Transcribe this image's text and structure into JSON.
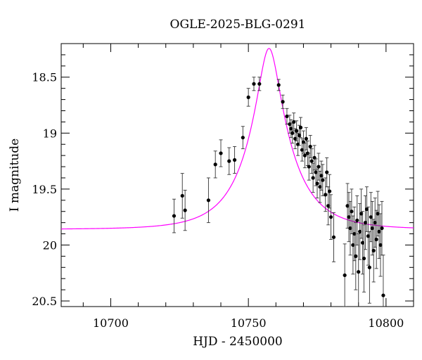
{
  "chart_data": {
    "type": "scatter",
    "title": "OGLE-2025-BLG-0291",
    "xlabel": "HJD - 2450000",
    "ylabel": "I magnitude",
    "xlim": [
      10682,
      10810
    ],
    "ylim": [
      20.55,
      18.2
    ],
    "y_inverted": true,
    "grid": false,
    "x_ticks": [
      10700,
      10750,
      10800
    ],
    "x_tick_labels": [
      "10700",
      "10750",
      "10800"
    ],
    "y_ticks": [
      18.5,
      19,
      19.5,
      20,
      20.5
    ],
    "y_tick_labels": [
      "18.5",
      "19",
      "19.5",
      "20",
      "20.5"
    ],
    "colors": {
      "data": "#000000",
      "model": "#ff00ff",
      "frame": "#000000"
    },
    "series": [
      {
        "kind": "points_with_errorbars",
        "x": [
          10723,
          10726,
          10727,
          10735.5,
          10738,
          10740,
          10743,
          10745,
          10748,
          10750,
          10752,
          10754,
          10761,
          10762.5,
          10764,
          10765,
          10765.5,
          10766,
          10766.5,
          10767,
          10767.5,
          10768,
          10768.5,
          10769,
          10769.5,
          10770,
          10770.5,
          10771,
          10771.5,
          10772,
          10772.5,
          10773,
          10773.5,
          10774,
          10774.5,
          10775,
          10775.5,
          10776,
          10776.5,
          10777,
          10778,
          10778.5,
          10779,
          10779.5,
          10780,
          10781,
          10785,
          10786,
          10786.5,
          10787,
          10787.5,
          10788,
          10788.5,
          10789,
          10789.5,
          10790,
          10790.5,
          10791,
          10791.5,
          10792,
          10792.5,
          10793,
          10793.5,
          10794,
          10794.5,
          10795,
          10795.5,
          10796,
          10796.5,
          10797,
          10797.5,
          10798,
          10798.5,
          10799
        ],
        "y": [
          19.74,
          19.56,
          19.69,
          19.6,
          19.28,
          19.18,
          19.25,
          19.24,
          19.04,
          18.68,
          18.56,
          18.56,
          18.57,
          18.72,
          18.85,
          18.92,
          18.96,
          19.0,
          18.9,
          19.05,
          18.98,
          19.1,
          19.02,
          18.95,
          19.15,
          19.08,
          19.2,
          19.05,
          19.18,
          19.3,
          19.12,
          19.25,
          19.4,
          19.22,
          19.35,
          19.45,
          19.3,
          19.48,
          19.38,
          19.42,
          19.55,
          19.35,
          19.65,
          19.52,
          19.75,
          19.93,
          20.27,
          19.65,
          19.75,
          19.85,
          19.7,
          20.0,
          19.9,
          20.1,
          19.78,
          20.24,
          19.88,
          19.72,
          19.98,
          20.12,
          19.8,
          19.68,
          19.92,
          20.2,
          19.75,
          19.85,
          20.05,
          19.8,
          19.95,
          19.72,
          19.88,
          20.0,
          19.85,
          20.45
        ],
        "yerr": [
          0.15,
          0.2,
          0.18,
          0.2,
          0.12,
          0.12,
          0.12,
          0.12,
          0.1,
          0.08,
          0.06,
          0.06,
          0.05,
          0.06,
          0.07,
          0.08,
          0.08,
          0.09,
          0.08,
          0.09,
          0.09,
          0.1,
          0.09,
          0.09,
          0.1,
          0.1,
          0.11,
          0.1,
          0.11,
          0.12,
          0.1,
          0.11,
          0.13,
          0.11,
          0.12,
          0.13,
          0.12,
          0.14,
          0.13,
          0.14,
          0.15,
          0.13,
          0.17,
          0.15,
          0.2,
          0.22,
          0.28,
          0.2,
          0.22,
          0.24,
          0.2,
          0.26,
          0.24,
          0.3,
          0.22,
          0.34,
          0.25,
          0.22,
          0.28,
          0.3,
          0.24,
          0.2,
          0.26,
          0.32,
          0.22,
          0.24,
          0.28,
          0.22,
          0.26,
          0.2,
          0.24,
          0.28,
          0.24,
          0.36
        ]
      },
      {
        "kind": "model_curve",
        "t0": 10757.5,
        "tE": 16.0,
        "u0": 0.23,
        "baseline_mag": 19.86
      }
    ]
  }
}
